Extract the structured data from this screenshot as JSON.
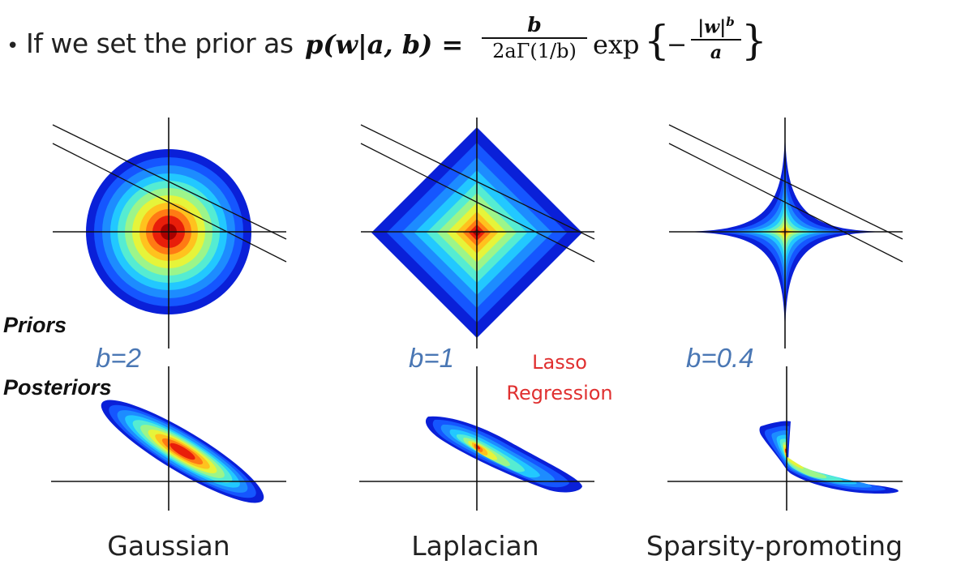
{
  "bullet": {
    "lead": "If we set the prior as",
    "formula_lhs": "p(w|a, b) =",
    "formula_num": "b",
    "formula_den": "2aΓ(1/b)",
    "formula_exp": "exp",
    "formula_inner_num": "|w|",
    "formula_inner_sup": "b",
    "formula_inner_den": "a"
  },
  "row_labels": {
    "priors": "Priors",
    "posteriors": "Posteriors"
  },
  "b_labels": [
    "b=2",
    "b=1",
    "b=0.4"
  ],
  "lasso": [
    "Lasso",
    "Regression"
  ],
  "column_labels": [
    "Gaussian",
    "Laplacian",
    "Sparsity-promoting"
  ],
  "colors": {
    "ramp": [
      "#0a20d8",
      "#1556ff",
      "#1d8cff",
      "#22c8ff",
      "#55ecd2",
      "#9cf58a",
      "#e6f43a",
      "#ffc21e",
      "#ff7a14",
      "#e81e0a",
      "#a80000"
    ],
    "b_label": "#4a77b4",
    "lasso": "#e03030"
  }
}
